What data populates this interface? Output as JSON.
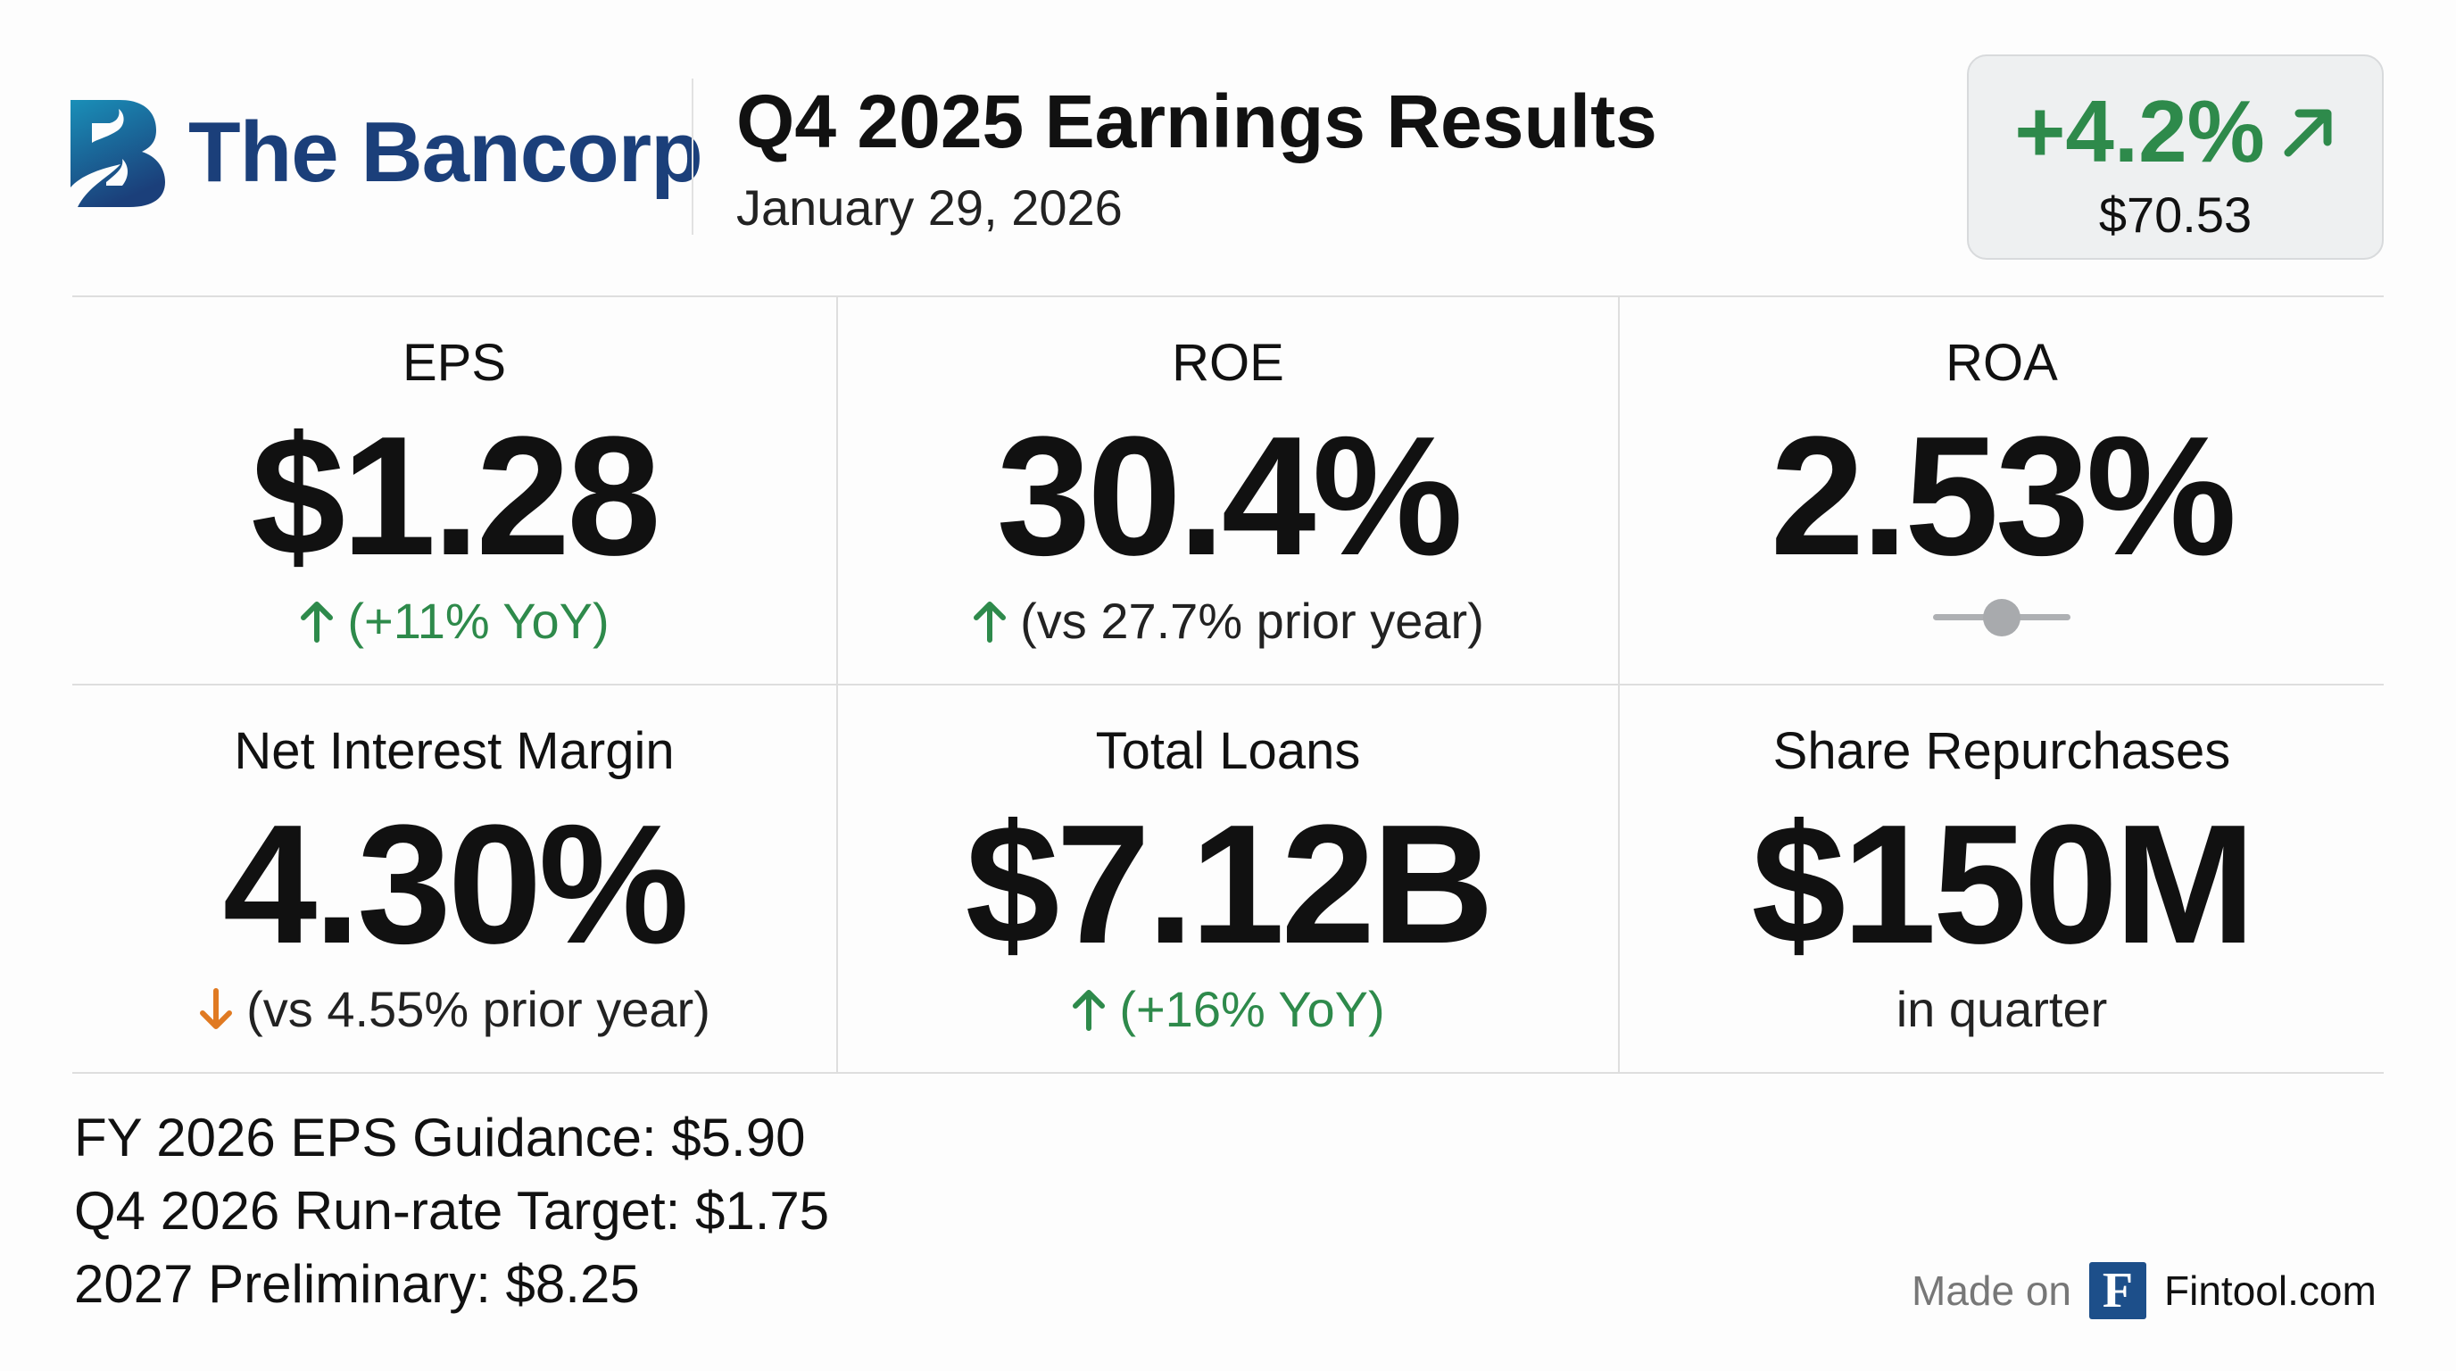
{
  "header": {
    "company": "The Bancorp",
    "title": "Q4 2025 Earnings Results",
    "date": "January 29, 2026"
  },
  "stock": {
    "change": "+4.2%",
    "price": "$70.53",
    "direction": "up",
    "color": "#2e8a4b"
  },
  "metrics": [
    {
      "label": "EPS",
      "value": "$1.28",
      "sub": "(+11% YoY)",
      "trend": "up"
    },
    {
      "label": "ROE",
      "value": "30.4%",
      "sub": "(vs 27.7% prior year)",
      "trend": "up"
    },
    {
      "label": "ROA",
      "value": "2.53%",
      "trend": "neutral"
    },
    {
      "label": "Net Interest Margin",
      "value": "4.30%",
      "sub": "(vs 4.55% prior year)",
      "trend": "down"
    },
    {
      "label": "Total Loans",
      "value": "$7.12B",
      "sub": "(+16% YoY)",
      "trend": "up"
    },
    {
      "label": "Share Repurchases",
      "value": "$150M",
      "sub": "in quarter",
      "trend": "none"
    }
  ],
  "guidance": [
    "FY 2026 EPS Guidance: $5.90",
    "Q4 2026 Run-rate Target: $1.75",
    "2027 Preliminary: $8.25"
  ],
  "footer": {
    "made_on": "Made on",
    "logo_letter": "F",
    "site": "Fintool.com"
  }
}
